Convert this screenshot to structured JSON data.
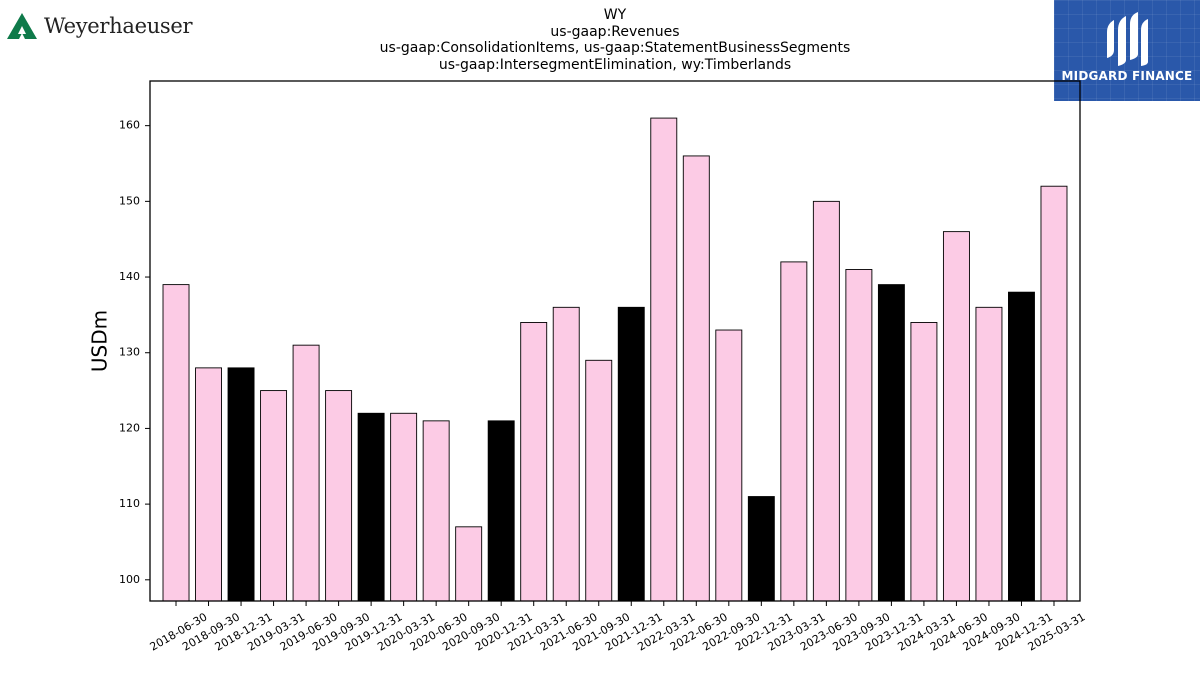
{
  "header": {
    "company_logo_text": "Weyerhaeuser",
    "title_lines": [
      "WY",
      "us-gaap:Revenues",
      "us-gaap:ConsolidationItems, us-gaap:StatementBusinessSegments",
      "us-gaap:IntersegmentElimination, wy:Timberlands"
    ],
    "brand_text": "MIDGARD FINANCE"
  },
  "colors": {
    "bar_default": "#fccbe5",
    "bar_highlight": "#000000",
    "bar_edge": "#000000",
    "logo_green": "#0f7a4a",
    "brand_bg": "#2a58aa"
  },
  "chart_data": {
    "type": "bar",
    "ylabel": "USDm",
    "xlabel": "",
    "ylim": [
      97.2,
      165.9
    ],
    "yticks": [
      100,
      110,
      120,
      130,
      140,
      150,
      160
    ],
    "grid": false,
    "legend": "none",
    "categories": [
      "2018-06-30",
      "2018-09-30",
      "2018-12-31",
      "2019-03-31",
      "2019-06-30",
      "2019-09-30",
      "2019-12-31",
      "2020-03-31",
      "2020-06-30",
      "2020-09-30",
      "2020-12-31",
      "2021-03-31",
      "2021-06-30",
      "2021-09-30",
      "2021-12-31",
      "2022-03-31",
      "2022-06-30",
      "2022-09-30",
      "2022-12-31",
      "2023-03-31",
      "2023-06-30",
      "2023-09-30",
      "2023-12-31",
      "2024-03-31",
      "2024-06-30",
      "2024-09-30",
      "2024-12-31",
      "2025-03-31"
    ],
    "values": [
      139,
      128,
      128,
      125,
      131,
      125,
      122,
      122,
      121,
      107,
      121,
      134,
      136,
      129,
      136,
      161,
      156,
      133,
      111,
      142,
      150,
      141,
      139,
      134,
      146,
      136,
      138,
      152
    ],
    "highlighted_categories": [
      "2018-12-31",
      "2019-12-31",
      "2020-12-31",
      "2021-12-31",
      "2022-12-31",
      "2023-12-31",
      "2024-12-31"
    ]
  }
}
